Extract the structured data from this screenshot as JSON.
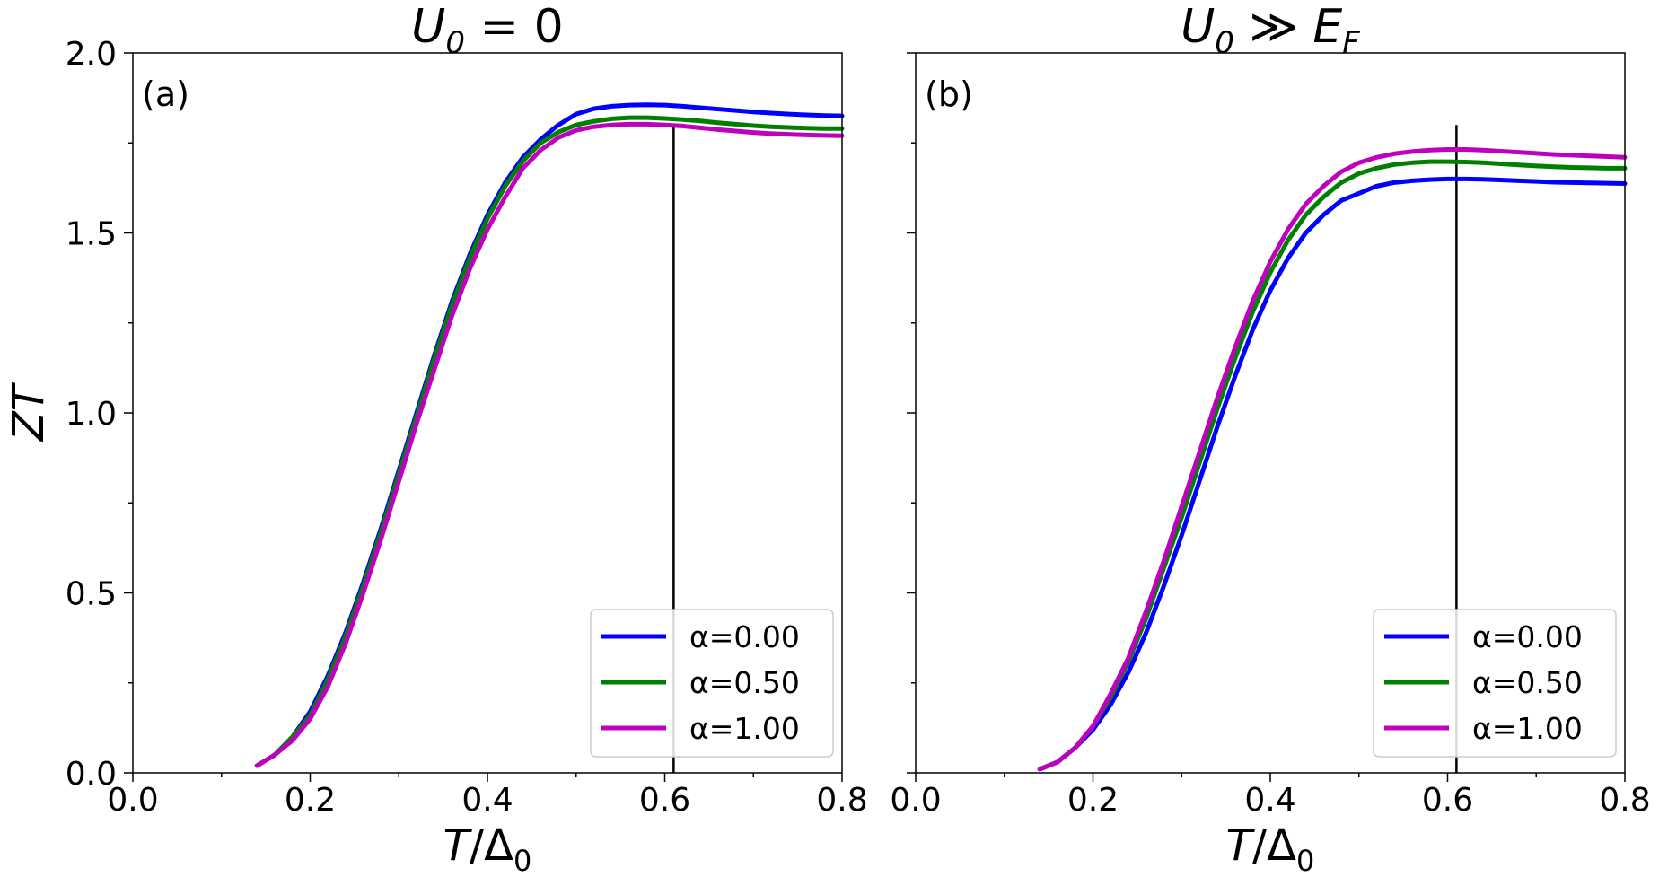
{
  "chart_data": [
    {
      "type": "line",
      "panel_label": "(a)",
      "title_main": "U",
      "title_sub": "0",
      "title_rest": " = 0",
      "xlabel_main": "T",
      "xlabel_rest": "/Δ",
      "xlabel_sub": "0",
      "ylabel": "ZT",
      "xlim": [
        0.0,
        0.8
      ],
      "ylim": [
        0.0,
        2.0
      ],
      "xticks": [
        "0.0",
        "0.2",
        "0.4",
        "0.6",
        "0.8"
      ],
      "yticks": [
        "0.0",
        "0.5",
        "1.0",
        "1.5",
        "2.0"
      ],
      "vline_x": 0.61,
      "legend_position": "lower-right",
      "x": [
        0.14,
        0.16,
        0.18,
        0.2,
        0.22,
        0.24,
        0.26,
        0.28,
        0.3,
        0.32,
        0.34,
        0.36,
        0.38,
        0.4,
        0.42,
        0.44,
        0.46,
        0.48,
        0.5,
        0.52,
        0.54,
        0.56,
        0.58,
        0.6,
        0.62,
        0.64,
        0.66,
        0.68,
        0.7,
        0.72,
        0.74,
        0.76,
        0.78,
        0.8
      ],
      "series": [
        {
          "name": "α=0.00",
          "color": "#0000ff",
          "values": [
            0.02,
            0.05,
            0.1,
            0.17,
            0.27,
            0.39,
            0.53,
            0.68,
            0.84,
            1.0,
            1.16,
            1.31,
            1.44,
            1.55,
            1.64,
            1.71,
            1.76,
            1.8,
            1.83,
            1.845,
            1.852,
            1.855,
            1.856,
            1.855,
            1.852,
            1.848,
            1.844,
            1.84,
            1.836,
            1.833,
            1.83,
            1.828,
            1.826,
            1.825
          ]
        },
        {
          "name": "α=0.50",
          "color": "#008000",
          "values": [
            0.02,
            0.05,
            0.1,
            0.16,
            0.26,
            0.38,
            0.52,
            0.67,
            0.83,
            0.99,
            1.15,
            1.3,
            1.43,
            1.54,
            1.63,
            1.7,
            1.75,
            1.78,
            1.8,
            1.81,
            1.817,
            1.82,
            1.82,
            1.818,
            1.815,
            1.811,
            1.806,
            1.802,
            1.798,
            1.795,
            1.793,
            1.791,
            1.79,
            1.79
          ]
        },
        {
          "name": "α=1.00",
          "color": "#bf00bf",
          "values": [
            0.02,
            0.05,
            0.09,
            0.15,
            0.24,
            0.36,
            0.5,
            0.65,
            0.81,
            0.97,
            1.12,
            1.27,
            1.4,
            1.51,
            1.6,
            1.68,
            1.73,
            1.765,
            1.785,
            1.795,
            1.8,
            1.802,
            1.802,
            1.8,
            1.797,
            1.792,
            1.787,
            1.783,
            1.779,
            1.776,
            1.774,
            1.772,
            1.771,
            1.77
          ]
        }
      ]
    },
    {
      "type": "line",
      "panel_label": "(b)",
      "title_main": "U",
      "title_sub": "0",
      "title_rest": " ≫ E",
      "title_sub2": "F",
      "xlabel_main": "T",
      "xlabel_rest": "/Δ",
      "xlabel_sub": "0",
      "xlim": [
        0.0,
        0.8
      ],
      "ylim": [
        0.0,
        2.0
      ],
      "xticks": [
        "0.0",
        "0.2",
        "0.4",
        "0.6",
        "0.8"
      ],
      "vline_x": 0.61,
      "legend_position": "lower-right",
      "x": [
        0.14,
        0.16,
        0.18,
        0.2,
        0.22,
        0.24,
        0.26,
        0.28,
        0.3,
        0.32,
        0.34,
        0.36,
        0.38,
        0.4,
        0.42,
        0.44,
        0.46,
        0.48,
        0.5,
        0.52,
        0.54,
        0.56,
        0.58,
        0.6,
        0.62,
        0.64,
        0.66,
        0.68,
        0.7,
        0.72,
        0.74,
        0.76,
        0.78,
        0.8
      ],
      "series": [
        {
          "name": "α=0.00",
          "color": "#0000ff",
          "values": [
            0.01,
            0.03,
            0.07,
            0.12,
            0.19,
            0.28,
            0.39,
            0.52,
            0.66,
            0.81,
            0.96,
            1.1,
            1.23,
            1.34,
            1.43,
            1.5,
            1.55,
            1.59,
            1.61,
            1.63,
            1.64,
            1.645,
            1.648,
            1.65,
            1.65,
            1.649,
            1.647,
            1.645,
            1.643,
            1.641,
            1.64,
            1.639,
            1.638,
            1.637
          ]
        },
        {
          "name": "α=0.50",
          "color": "#008000",
          "values": [
            0.01,
            0.03,
            0.07,
            0.13,
            0.21,
            0.31,
            0.43,
            0.57,
            0.71,
            0.86,
            1.01,
            1.15,
            1.28,
            1.39,
            1.48,
            1.55,
            1.6,
            1.64,
            1.665,
            1.68,
            1.69,
            1.695,
            1.698,
            1.698,
            1.697,
            1.695,
            1.692,
            1.689,
            1.686,
            1.684,
            1.682,
            1.681,
            1.68,
            1.68
          ]
        },
        {
          "name": "α=1.00",
          "color": "#bf00bf",
          "values": [
            0.01,
            0.03,
            0.07,
            0.13,
            0.22,
            0.32,
            0.45,
            0.59,
            0.74,
            0.89,
            1.04,
            1.18,
            1.31,
            1.42,
            1.51,
            1.58,
            1.63,
            1.67,
            1.695,
            1.71,
            1.72,
            1.726,
            1.73,
            1.732,
            1.732,
            1.73,
            1.727,
            1.724,
            1.721,
            1.718,
            1.716,
            1.714,
            1.712,
            1.71
          ]
        }
      ]
    }
  ]
}
